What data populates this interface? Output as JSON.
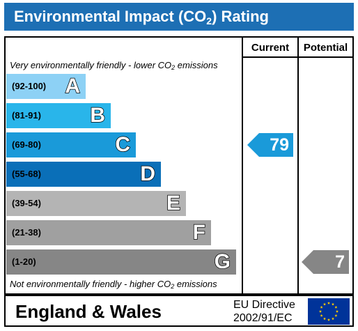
{
  "title_prefix": "Environmental Impact (CO",
  "title_sub": "2",
  "title_suffix": ") Rating",
  "columns": {
    "current": "Current",
    "potential": "Potential"
  },
  "top_note": {
    "prefix": "Very environmentally friendly - lower CO",
    "sub": "2",
    "suffix": " emissions"
  },
  "bottom_note": {
    "prefix": "Not environmentally friendly - higher CO",
    "sub": "2",
    "suffix": " emissions"
  },
  "footer": {
    "country": "England & Wales",
    "directive_line1": "EU Directive",
    "directive_line2": "2002/91/EC"
  },
  "chart_data": {
    "type": "bar",
    "bands": [
      {
        "letter": "A",
        "range": "(92-100)",
        "color": "#8dd1f5",
        "min": 92,
        "max": 100
      },
      {
        "letter": "B",
        "range": "(81-91)",
        "color": "#29b5ea",
        "min": 81,
        "max": 91
      },
      {
        "letter": "C",
        "range": "(69-80)",
        "color": "#1a9ad9",
        "min": 69,
        "max": 80
      },
      {
        "letter": "D",
        "range": "(55-68)",
        "color": "#0a6fb8",
        "min": 55,
        "max": 68
      },
      {
        "letter": "E",
        "range": "(39-54)",
        "color": "#b4b4b4",
        "min": 39,
        "max": 54
      },
      {
        "letter": "F",
        "range": "(21-38)",
        "color": "#a0a0a0",
        "min": 21,
        "max": 38
      },
      {
        "letter": "G",
        "range": "(1-20)",
        "color": "#868686",
        "min": 1,
        "max": 20
      }
    ],
    "current": {
      "value": 79,
      "color": "#1a9ad9"
    },
    "potential": {
      "value": 7,
      "color": "#868686"
    }
  }
}
